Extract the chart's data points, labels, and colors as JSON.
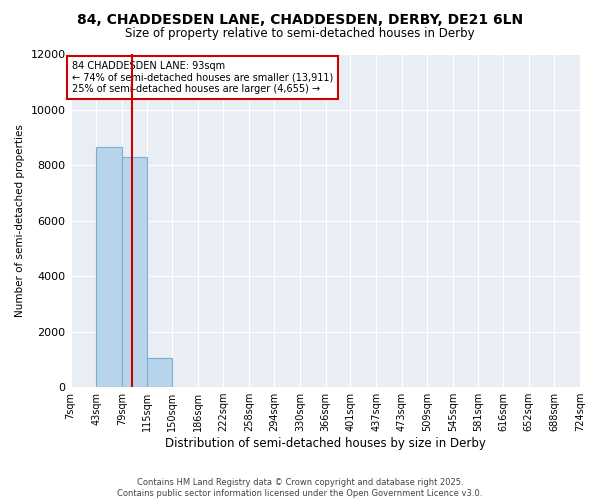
{
  "title_line1": "84, CHADDESDEN LANE, CHADDESDEN, DERBY, DE21 6LN",
  "title_line2": "Size of property relative to semi-detached houses in Derby",
  "xlabel": "Distribution of semi-detached houses by size in Derby",
  "ylabel": "Number of semi-detached properties",
  "annotation_title": "84 CHADDESDEN LANE: 93sqm",
  "annotation_line2": "← 74% of semi-detached houses are smaller (13,911)",
  "annotation_line3": "25% of semi-detached houses are larger (4,655) →",
  "footer_line1": "Contains HM Land Registry data © Crown copyright and database right 2025.",
  "footer_line2": "Contains public sector information licensed under the Open Government Licence v3.0.",
  "property_size": 93,
  "bar_color": "#b8d4ea",
  "bar_edge_color": "#7aafd4",
  "vline_color": "#cc0000",
  "annotation_box_color": "#cc0000",
  "background_color": "#e8eef4",
  "ylim": [
    0,
    12000
  ],
  "bin_edges": [
    7,
    43,
    79,
    115,
    150,
    186,
    222,
    258,
    294,
    330,
    366,
    401,
    437,
    473,
    509,
    545,
    581,
    616,
    652,
    688,
    724
  ],
  "bin_labels": [
    "7sqm",
    "43sqm",
    "79sqm",
    "115sqm",
    "150sqm",
    "186sqm",
    "222sqm",
    "258sqm",
    "294sqm",
    "330sqm",
    "366sqm",
    "401sqm",
    "437sqm",
    "473sqm",
    "509sqm",
    "545sqm",
    "581sqm",
    "616sqm",
    "652sqm",
    "688sqm",
    "724sqm"
  ],
  "bar_heights": [
    0,
    8650,
    8300,
    1050,
    0,
    0,
    0,
    0,
    0,
    0,
    0,
    0,
    0,
    0,
    0,
    0,
    0,
    0,
    0,
    0
  ]
}
